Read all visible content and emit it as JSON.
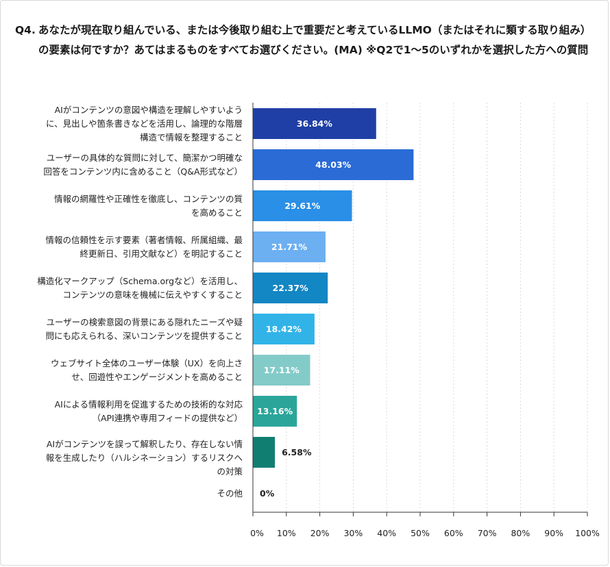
{
  "title": {
    "number": "Q4.",
    "text": "あなたが現在取り組んでいる、または今後取り組む上で重要だと考えているLLMO（またはそれに類する取り組み）の要素は何ですか？あてはまるものをすべてお選びください。(MA) ※Q2で1〜5のいずれかを選択した方への質問"
  },
  "chart_data": {
    "type": "bar",
    "orientation": "horizontal",
    "categories": [
      "AIがコンテンツの意図や構造を理解しやすいように、見出しや箇条書きなどを活用し、論理的な階層構造で情報を整理すること",
      "ユーザーの具体的な質問に対して、簡潔かつ明確な回答をコンテンツ内に含めること（Q&A形式など）",
      "情報の網羅性や正確性を徹底し、コンテンツの質を高めること",
      "情報の信頼性を示す要素（著者情報、所属組織、最終更新日、引用文献など）を明記すること",
      "構造化マークアップ（Schema.orgなど）を活用し、コンテンツの意味を機械に伝えやすくすること",
      "ユーザーの検索意図の背景にある隠れたニーズや疑問にも応えられる、深いコンテンツを提供すること",
      "ウェブサイト全体のユーザー体験（UX）を向上させ、回遊性やエンゲージメントを高めること",
      "AIによる情報利用を促進するための技術的な対応（API連携や専用フィードの提供など）",
      "AIがコンテンツを誤って解釈したり、存在しない情報を生成したり（ハルシネーション）するリスクへの対策",
      "その他"
    ],
    "category_lines": [
      [
        "AIがコンテンツの意図や構造を理解しやすいよう",
        "に、見出しや箇条書きなどを活用し、論理的な階層",
        "構造で情報を整理すること"
      ],
      [
        "ユーザーの具体的な質問に対して、簡潔かつ明確な",
        "回答をコンテンツ内に含めること（Q&A形式など）"
      ],
      [
        "情報の網羅性や正確性を徹底し、コンテンツの質",
        "を高めること"
      ],
      [
        "情報の信頼性を示す要素（著者情報、所属組織、最",
        "終更新日、引用文献など）を明記すること"
      ],
      [
        "構造化マークアップ（Schema.orgなど）を活用し、",
        "コンテンツの意味を機械に伝えやすくすること"
      ],
      [
        "ユーザーの検索意図の背景にある隠れたニーズや疑",
        "問にも応えられる、深いコンテンツを提供すること"
      ],
      [
        "ウェブサイト全体のユーザー体験（UX）を向上さ",
        "せ、回遊性やエンゲージメントを高めること"
      ],
      [
        "AIによる情報利用を促進するための技術的な対応",
        "（API連携や専用フィードの提供など）"
      ],
      [
        "AIがコンテンツを誤って解釈したり、存在しない情",
        "報を生成したり（ハルシネーション）するリスクへ",
        "の対策"
      ],
      [
        "その他"
      ]
    ],
    "values": [
      36.84,
      48.03,
      29.61,
      21.71,
      22.37,
      18.42,
      17.11,
      13.16,
      6.58,
      0
    ],
    "value_labels": [
      "36.84%",
      "48.03%",
      "29.61%",
      "21.71%",
      "22.37%",
      "18.42%",
      "17.11%",
      "13.16%",
      "6.58%",
      "0%"
    ],
    "colors": [
      "#1f3fa6",
      "#2a6bd6",
      "#2a8fe6",
      "#6cb0f2",
      "#1386c4",
      "#32b3e8",
      "#83cbc9",
      "#2ba59a",
      "#117e72",
      "#ffffff"
    ],
    "xlim": [
      0,
      100
    ],
    "xticks": [
      0,
      10,
      20,
      30,
      40,
      50,
      60,
      70,
      80,
      90,
      100
    ],
    "xtick_labels": [
      "0%",
      "10%",
      "20%",
      "30%",
      "40%",
      "50%",
      "60%",
      "70%",
      "80%",
      "90%",
      "100%"
    ],
    "grid": true,
    "grid_style": "dashed vertical",
    "xlabel": "",
    "ylabel": ""
  }
}
